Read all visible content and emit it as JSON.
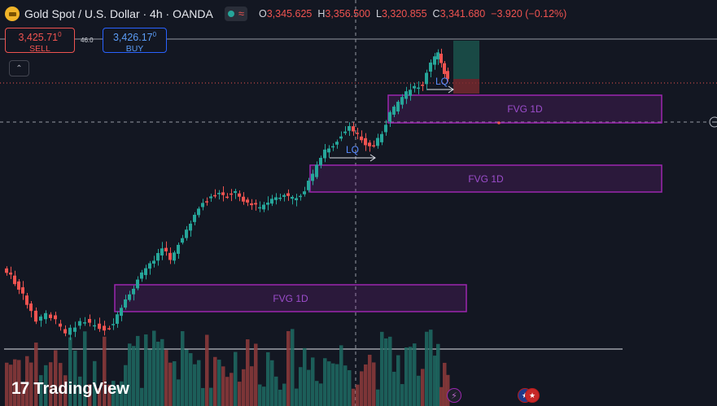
{
  "header": {
    "symbol_icon": "gold-coin-icon",
    "title": "Gold Spot / U.S. Dollar · 4h · OANDA",
    "toggle_icon": "wave-icon",
    "ohlc": [
      {
        "key": "O",
        "value": "3,345.625"
      },
      {
        "key": "H",
        "value": "3,356.500"
      },
      {
        "key": "L",
        "value": "3,320.855"
      },
      {
        "key": "C",
        "value": "3,341.680"
      },
      {
        "key": "",
        "value": "−3.920 (−0.12%)"
      }
    ]
  },
  "trade": {
    "sell_price": "3,425.71",
    "sell_sup": "0",
    "sell_label": "SELL",
    "spread": "46.0",
    "buy_price": "3,426.17",
    "buy_sup": "0",
    "buy_label": "BUY"
  },
  "zones": [
    {
      "label": "FVG 1D"
    },
    {
      "label": "FVG 1D"
    },
    {
      "label": "FVG 1D"
    }
  ],
  "markers": [
    {
      "label": "LQ"
    },
    {
      "label": "LQ"
    }
  ],
  "logo": {
    "text": "TradingView",
    "icon": "tradingview-logo-icon"
  },
  "events": [
    {
      "icon": "lightning-icon"
    },
    {
      "icon": "us-flag-icon"
    }
  ],
  "colors": {
    "background": "#131722",
    "up": "#26a69a",
    "down": "#ef5350",
    "zone": "#9c27b0",
    "marker": "#5b8cff"
  }
}
